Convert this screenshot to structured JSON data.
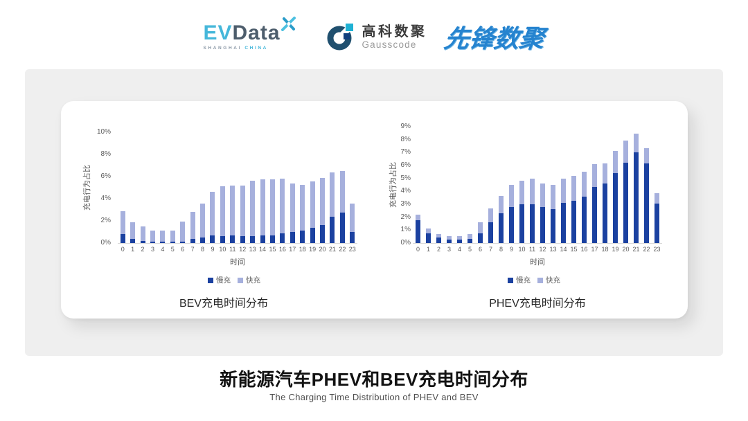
{
  "header": {
    "evdata": {
      "ev": "EV",
      "data": "Data",
      "sub_left": "SHANGHAI",
      "sub_right": "CHINA"
    },
    "gausscode": {
      "cn": "高科数聚",
      "en": "Gausscode"
    },
    "xianfeng": {
      "text": "先锋数聚"
    }
  },
  "chart_data": [
    {
      "id": "bev",
      "type": "bar",
      "stacked": true,
      "title": "BEV充电时间分布",
      "ylabel": "充电行为占比",
      "xlabel": "时间",
      "grid": false,
      "legend_position": "bottom",
      "ymax": 10,
      "ytick_step": 2,
      "ytick_suffix": "%",
      "categories": [
        "0",
        "1",
        "2",
        "3",
        "4",
        "5",
        "6",
        "7",
        "8",
        "9",
        "10",
        "11",
        "12",
        "13",
        "14",
        "15",
        "16",
        "17",
        "18",
        "19",
        "20",
        "21",
        "22",
        "23"
      ],
      "series": [
        {
          "name": "慢充",
          "color": "#1b41a0",
          "values": [
            0.8,
            0.35,
            0.2,
            0.15,
            0.1,
            0.1,
            0.15,
            0.35,
            0.5,
            0.7,
            0.65,
            0.7,
            0.6,
            0.6,
            0.7,
            0.7,
            0.85,
            1.0,
            1.1,
            1.35,
            1.6,
            2.4,
            2.75,
            1.0
          ]
        },
        {
          "name": "快充",
          "color": "#a6b0dd",
          "values": [
            2.1,
            1.55,
            1.3,
            1.0,
            1.0,
            1.05,
            1.8,
            2.45,
            3.05,
            3.95,
            4.5,
            4.5,
            4.6,
            5.0,
            5.05,
            5.05,
            4.95,
            4.4,
            4.15,
            4.2,
            4.3,
            3.95,
            3.75,
            2.55
          ]
        }
      ]
    },
    {
      "id": "phev",
      "type": "bar",
      "stacked": true,
      "title": "PHEV充电时间分布",
      "ylabel": "充电行为占比",
      "xlabel": "时间",
      "grid": false,
      "legend_position": "bottom",
      "ymax": 9,
      "ytick_step": 1,
      "ytick_suffix": "%",
      "categories": [
        "0",
        "1",
        "2",
        "3",
        "4",
        "5",
        "6",
        "7",
        "8",
        "9",
        "10",
        "11",
        "12",
        "13",
        "14",
        "15",
        "16",
        "17",
        "18",
        "19",
        "20",
        "21",
        "22",
        "23"
      ],
      "series": [
        {
          "name": "慢充",
          "color": "#1b41a0",
          "values": [
            1.75,
            0.75,
            0.45,
            0.25,
            0.25,
            0.3,
            0.75,
            1.6,
            2.3,
            2.8,
            3.0,
            3.0,
            2.8,
            2.65,
            3.1,
            3.25,
            3.6,
            4.35,
            4.6,
            5.4,
            6.2,
            7.0,
            6.15,
            3.05
          ]
        },
        {
          "name": "快充",
          "color": "#a6b0dd",
          "values": [
            0.45,
            0.4,
            0.25,
            0.3,
            0.3,
            0.4,
            0.85,
            1.1,
            1.35,
            1.7,
            1.8,
            2.0,
            1.8,
            1.85,
            1.9,
            1.95,
            1.9,
            1.75,
            1.55,
            1.7,
            1.75,
            1.45,
            1.2,
            0.8
          ]
        }
      ]
    }
  ],
  "footer": {
    "title": "新能源汽车PHEV和BEV充电时间分布",
    "subtitle": "The Charging Time Distribution of PHEV and BEV"
  },
  "colors": {
    "slow_charge": "#1b41a0",
    "fast_charge": "#a6b0dd",
    "panel_bg": "#efefef",
    "card_bg": "#ffffff",
    "axis_line": "#d9d9d9",
    "tick_text": "#595959",
    "evdata_blue": "#45b7da",
    "evdata_dark": "#4d5d6c",
    "gauss_steel": "#20506f",
    "gauss_cyan": "#1fb1d4",
    "gauss_navy": "#123f7e",
    "xianfeng_blue": "#2583cf"
  }
}
